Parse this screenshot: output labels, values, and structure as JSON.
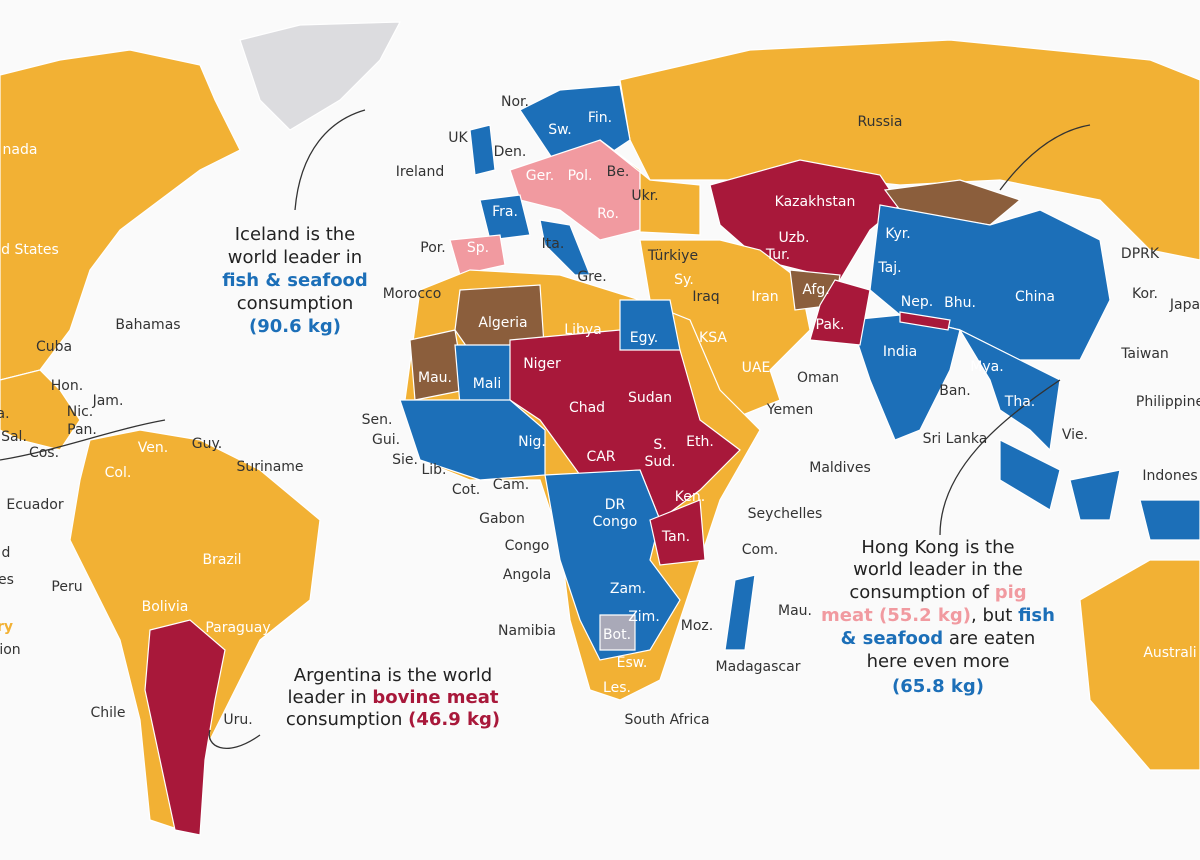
{
  "labels": [
    "Russia",
    "nada",
    "d States",
    "Nor.",
    "UK",
    "Den.",
    "Ireland",
    "Sw.",
    "Fin.",
    "Ger.",
    "Pol.",
    "Be.",
    "Ukr.",
    "Fra.",
    "Ro.",
    "Kazakhstan",
    "Uzb.",
    "Kyr.",
    "Tur.",
    "Taj.",
    "Por.",
    "Sp.",
    "Ita.",
    "Türkiye",
    "Gre.",
    "Sy.",
    "Iraq",
    "Iran",
    "Afg.",
    "Morocco",
    "Algeria",
    "Libya",
    "Egy.",
    "KSA",
    "UAE",
    "Oman",
    "Pak.",
    "Nep.",
    "Bhu.",
    "China",
    "DPRK",
    "Kor.",
    "Japa",
    "Taiwan",
    "India",
    "Mya.",
    "Ban.",
    "Tha.",
    "Vie.",
    "Philippine",
    "Sri Lanka",
    "Indones",
    "Maldives",
    "Seychelles",
    "Com.",
    "Mau.",
    "Madagascar",
    "Moz.",
    "Yemen",
    "Bahamas",
    "Cuba",
    "Hon.",
    "Jam.",
    "Nic.",
    "Pan.",
    "Sal.",
    "Cos.",
    "a.",
    "Guy.",
    "Suriname",
    "Ven.",
    "Col.",
    "Ecuador",
    "Brazil",
    "Peru",
    "Bolivia",
    "Paraguay",
    "Chile",
    "Uru.",
    "Mau.",
    "Mali",
    "Niger",
    "Chad",
    "Sudan",
    "Sen.",
    "Gui.",
    "Sie.",
    "Lib.",
    "Cot.",
    "Nig.",
    "CAR",
    "S.",
    "Sud.",
    "Eth.",
    "Cam.",
    "Gabon",
    "Congo",
    "Angola",
    "Namibia",
    "DR",
    "Congo",
    "Ken.",
    "Tan.",
    "Zam.",
    "Zim.",
    "Bot.",
    "Esw.",
    "Les.",
    "South Africa",
    "Australi",
    "d",
    "es",
    "ry",
    "ion"
  ],
  "annotations": [
    {
      "lines": [
        [
          "Iceland is the"
        ],
        [
          "world leader in"
        ],
        [
          "fish & seafood"
        ],
        [
          "consumption"
        ],
        [
          "(90.6 kg)"
        ]
      ]
    },
    {
      "lines": [
        [
          "Argentina is the world"
        ],
        [
          "leader in ",
          "bovine meat"
        ],
        [
          "consumption ",
          "(46.9 kg)"
        ]
      ]
    },
    {
      "lines": [
        [
          "Hong Kong is the"
        ],
        [
          "world leader in the"
        ],
        [
          "consumption of ",
          "pig"
        ],
        [
          "meat (55.2 kg)",
          ", but ",
          "fish"
        ],
        [
          "& seafood",
          " are eaten"
        ],
        [
          "here even more"
        ],
        [
          "(65.8 kg)"
        ]
      ]
    }
  ]
}
